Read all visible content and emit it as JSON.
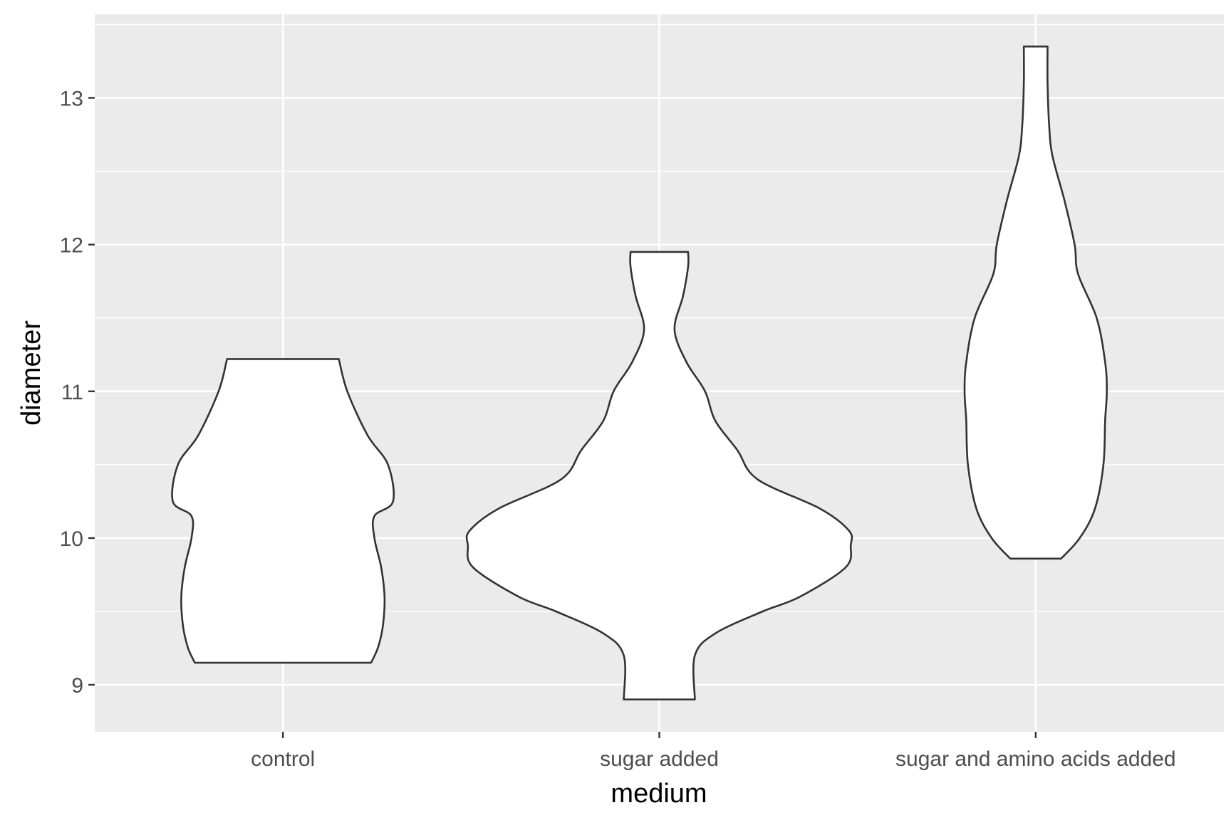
{
  "chart_data": {
    "type": "violin",
    "xlabel": "medium",
    "ylabel": "diameter",
    "categories": [
      "control",
      "sugar added",
      "sugar and amino acids added"
    ],
    "ylim": [
      8.68,
      13.57
    ],
    "yticks": [
      9,
      10,
      11,
      12,
      13
    ],
    "grid": true,
    "colors": {
      "panel": "#ebebeb",
      "grid": "#ffffff",
      "violin_fill": "#ffffff",
      "violin_stroke": "#333333"
    },
    "violins": [
      {
        "category": "control",
        "profile": [
          [
            9.15,
            0.52
          ],
          [
            9.25,
            0.56
          ],
          [
            9.4,
            0.59
          ],
          [
            9.6,
            0.6
          ],
          [
            9.8,
            0.58
          ],
          [
            10.0,
            0.54
          ],
          [
            10.15,
            0.54
          ],
          [
            10.25,
            0.65
          ],
          [
            10.5,
            0.62
          ],
          [
            10.7,
            0.5
          ],
          [
            11.0,
            0.38
          ],
          [
            11.22,
            0.33
          ]
        ]
      },
      {
        "category": "sugar added",
        "profile": [
          [
            8.9,
            0.21
          ],
          [
            9.2,
            0.21
          ],
          [
            9.35,
            0.33
          ],
          [
            9.5,
            0.61
          ],
          [
            9.6,
            0.83
          ],
          [
            9.8,
            1.1
          ],
          [
            9.95,
            1.13
          ],
          [
            10.05,
            1.12
          ],
          [
            10.2,
            0.95
          ],
          [
            10.4,
            0.58
          ],
          [
            10.6,
            0.46
          ],
          [
            10.8,
            0.33
          ],
          [
            11.0,
            0.27
          ],
          [
            11.2,
            0.16
          ],
          [
            11.42,
            0.09
          ],
          [
            11.65,
            0.14
          ],
          [
            11.85,
            0.17
          ],
          [
            11.95,
            0.17
          ]
        ]
      },
      {
        "category": "sugar and amino acids added",
        "profile": [
          [
            9.86,
            0.15
          ],
          [
            10.0,
            0.26
          ],
          [
            10.2,
            0.35
          ],
          [
            10.5,
            0.4
          ],
          [
            10.8,
            0.41
          ],
          [
            11.0,
            0.42
          ],
          [
            11.2,
            0.41
          ],
          [
            11.5,
            0.36
          ],
          [
            11.8,
            0.25
          ],
          [
            12.0,
            0.23
          ],
          [
            12.3,
            0.17
          ],
          [
            12.6,
            0.1
          ],
          [
            12.8,
            0.08
          ],
          [
            13.1,
            0.07
          ],
          [
            13.35,
            0.07
          ]
        ]
      }
    ]
  }
}
